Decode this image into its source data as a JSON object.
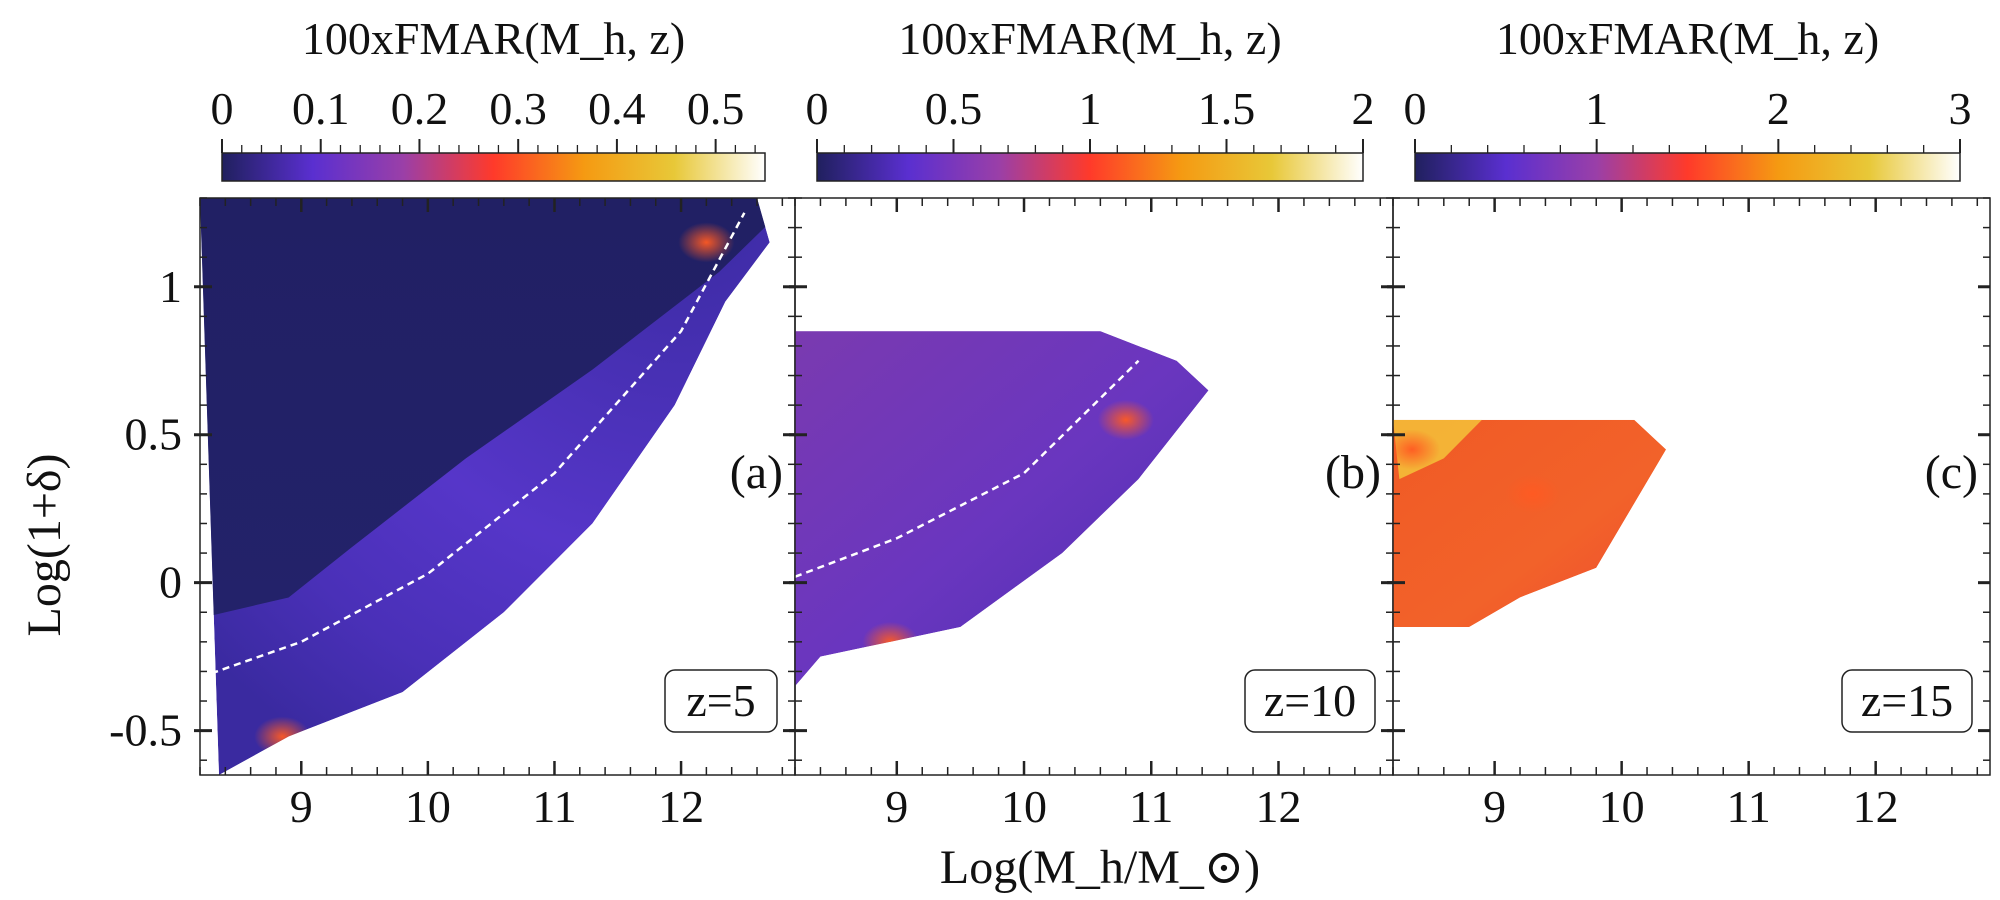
{
  "figure": {
    "xlabel": "Log(M_h/M_⊙)",
    "ylabel": "Log(1+δ)"
  },
  "colormap_stops": [
    "#20205e",
    "#5a2fd0",
    "#9a3fa8",
    "#ff3a2a",
    "#f59a12",
    "#e8c838",
    "#ffffff"
  ],
  "chart_data": [
    {
      "type": "heatmap",
      "panel_label": "(a)",
      "redshift_label": "z=5",
      "colorbar_title": "100xFMAR(M_h, z)",
      "colorbar_range": [
        0,
        0.55
      ],
      "colorbar_ticks": [
        "0",
        "0.1",
        "0.2",
        "0.3",
        "0.4",
        "0.5"
      ],
      "colorbar_tick_values": [
        0,
        0.1,
        0.2,
        0.3,
        0.4,
        0.5
      ],
      "xlim": [
        8.2,
        12.9
      ],
      "ylim": [
        -0.65,
        1.3
      ],
      "xticks": [
        "9",
        "10",
        "11",
        "12"
      ],
      "yticks": [
        "-0.5",
        "0",
        "0.5",
        "1"
      ],
      "region_upper_edge": [
        [
          8.2,
          1.3
        ],
        [
          12.6,
          1.3
        ],
        [
          12.7,
          1.15
        ]
      ],
      "region_lower_edge": [
        [
          8.35,
          -0.65
        ],
        [
          8.9,
          -0.52
        ],
        [
          9.8,
          -0.37
        ],
        [
          10.6,
          -0.1
        ],
        [
          11.3,
          0.2
        ],
        [
          11.95,
          0.6
        ],
        [
          12.35,
          0.95
        ],
        [
          12.7,
          1.15
        ]
      ],
      "dashed_curve": [
        [
          8.2,
          -0.32
        ],
        [
          9.0,
          -0.2
        ],
        [
          10.0,
          0.03
        ],
        [
          11.0,
          0.37
        ],
        [
          12.0,
          0.85
        ],
        [
          12.5,
          1.25
        ]
      ],
      "hotspots": [
        {
          "x": 12.2,
          "y": 1.15,
          "value": 0.3
        },
        {
          "x": 8.85,
          "y": -0.52,
          "value": 0.25
        }
      ]
    },
    {
      "type": "heatmap",
      "panel_label": "(b)",
      "redshift_label": "z=10",
      "colorbar_title": "100xFMAR(M_h, z)",
      "colorbar_range": [
        0,
        2.0
      ],
      "colorbar_ticks": [
        "0",
        "0.5",
        "1",
        "1.5",
        "2"
      ],
      "colorbar_tick_values": [
        0,
        0.5,
        1,
        1.5,
        2
      ],
      "xlim": [
        8.2,
        12.9
      ],
      "ylim": [
        -0.65,
        1.3
      ],
      "xticks": [
        "9",
        "10",
        "11",
        "12"
      ],
      "yticks": [
        "-0.5",
        "0",
        "0.5",
        "1"
      ],
      "region_upper_edge": [
        [
          8.2,
          0.85
        ],
        [
          10.6,
          0.85
        ],
        [
          11.2,
          0.75
        ],
        [
          11.45,
          0.65
        ]
      ],
      "region_lower_edge": [
        [
          8.2,
          -0.35
        ],
        [
          8.4,
          -0.25
        ],
        [
          9.5,
          -0.15
        ],
        [
          10.3,
          0.1
        ],
        [
          10.9,
          0.35
        ],
        [
          11.45,
          0.65
        ]
      ],
      "dashed_curve": [
        [
          8.2,
          0.02
        ],
        [
          9.0,
          0.15
        ],
        [
          10.0,
          0.37
        ],
        [
          10.9,
          0.75
        ]
      ],
      "hotspots": [
        {
          "x": 10.8,
          "y": 0.55,
          "value": 1.1
        },
        {
          "x": 8.95,
          "y": -0.2,
          "value": 1.0
        }
      ]
    },
    {
      "type": "heatmap",
      "panel_label": "(c)",
      "redshift_label": "z=15",
      "colorbar_title": "100xFMAR(M_h, z)",
      "colorbar_range": [
        0,
        3.0
      ],
      "colorbar_ticks": [
        "0",
        "1",
        "2",
        "3"
      ],
      "colorbar_tick_values": [
        0,
        1,
        2,
        3
      ],
      "xlim": [
        8.2,
        12.9
      ],
      "ylim": [
        -0.65,
        1.3
      ],
      "xticks": [
        "9",
        "10",
        "11",
        "12"
      ],
      "yticks": [
        "-0.5",
        "0",
        "0.5",
        "1"
      ],
      "region_upper_edge": [
        [
          8.2,
          0.55
        ],
        [
          10.1,
          0.55
        ],
        [
          10.35,
          0.45
        ]
      ],
      "region_lower_edge": [
        [
          8.2,
          -0.15
        ],
        [
          8.8,
          -0.15
        ],
        [
          9.2,
          -0.05
        ],
        [
          9.8,
          0.05
        ],
        [
          10.35,
          0.45
        ]
      ],
      "dashed_curve": [],
      "hotspots": [
        {
          "x": 8.35,
          "y": 0.45,
          "value": 2.6
        },
        {
          "x": 9.3,
          "y": 0.3,
          "value": 1.5
        }
      ]
    }
  ]
}
